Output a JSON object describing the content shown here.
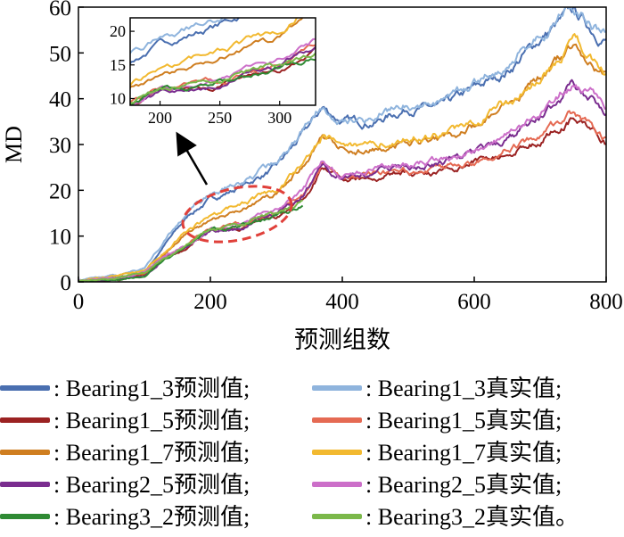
{
  "chart_data": {
    "type": "line",
    "xlabel": "预测组数",
    "ylabel": "MD",
    "xlim": [
      0,
      800
    ],
    "ylim": [
      0,
      60
    ],
    "xticks": [
      "0",
      "200",
      "400",
      "600",
      "800"
    ],
    "yticks": [
      "0",
      "10",
      "20",
      "30",
      "40",
      "50",
      "60"
    ],
    "grid": false,
    "legend_position": "bottom",
    "series": [
      {
        "name": "Bearing1_3预测值",
        "color": "#4a6fb0",
        "x": [
          0,
          60,
          100,
          130,
          170,
          200,
          250,
          300,
          340,
          370,
          400,
          450,
          500,
          550,
          600,
          650,
          700,
          750,
          780,
          800
        ],
        "y": [
          0,
          1,
          2,
          8,
          15,
          18,
          21,
          25,
          32,
          38,
          35,
          35,
          38,
          38,
          42,
          46,
          53,
          59,
          55,
          53
        ]
      },
      {
        "name": "Bearing1_3真实值",
        "color": "#8fb4dd",
        "x": [
          0,
          60,
          100,
          130,
          170,
          200,
          250,
          300,
          340,
          370,
          400,
          450,
          500,
          550,
          600,
          650,
          700,
          750,
          780,
          800
        ],
        "y": [
          0.5,
          1.5,
          3,
          9,
          16,
          19,
          22,
          26,
          33,
          39,
          36,
          36,
          39,
          39,
          43,
          47,
          54,
          60,
          56,
          54
        ]
      },
      {
        "name": "Bearing1_5预测值",
        "color": "#9b2222",
        "x": [
          0,
          60,
          100,
          130,
          170,
          200,
          250,
          300,
          340,
          370,
          400,
          450,
          500,
          550,
          600,
          650,
          700,
          750,
          780,
          800
        ],
        "y": [
          0,
          0.5,
          1.5,
          5,
          8,
          11,
          12,
          14,
          18,
          25,
          22,
          23,
          24,
          24,
          26,
          28,
          31,
          36,
          33,
          30
        ]
      },
      {
        "name": "Bearing1_5真实值",
        "color": "#e56a53",
        "x": [
          0,
          60,
          100,
          130,
          170,
          200,
          250,
          300,
          340,
          370,
          400,
          450,
          500,
          550,
          600,
          650,
          700,
          750,
          780,
          800
        ],
        "y": [
          0.3,
          0.8,
          2,
          5.5,
          8.5,
          11.5,
          12.5,
          14.5,
          18.5,
          25.5,
          22.5,
          23.5,
          24.5,
          24.5,
          26.5,
          29,
          32,
          37,
          34,
          31
        ]
      },
      {
        "name": "Bearing1_7预测值",
        "color": "#cf7e20",
        "x": [
          0,
          60,
          100,
          130,
          170,
          200,
          250,
          300,
          340,
          370,
          400,
          450,
          500,
          550,
          600,
          650,
          700,
          750,
          780,
          800
        ],
        "y": [
          0,
          0.8,
          2,
          6,
          11,
          13,
          16,
          19,
          25,
          31,
          29,
          29,
          31,
          31,
          34,
          38,
          44,
          51,
          48,
          45
        ]
      },
      {
        "name": "Bearing1_7真实值",
        "color": "#f2b930",
        "x": [
          0,
          60,
          100,
          130,
          170,
          200,
          250,
          300,
          340,
          370,
          400,
          450,
          500,
          550,
          600,
          650,
          700,
          750,
          780,
          800
        ],
        "y": [
          0.4,
          1.2,
          2.5,
          6.5,
          12,
          14,
          17,
          20,
          26,
          32,
          30,
          30,
          32,
          32,
          35,
          39,
          45,
          52,
          49,
          46
        ]
      },
      {
        "name": "Bearing2_5预测值",
        "color": "#7a2d8f",
        "x": [
          0,
          60,
          100,
          130,
          170,
          200,
          250,
          300,
          340,
          370,
          400,
          450,
          500,
          550,
          600,
          650,
          700,
          750,
          780,
          800
        ],
        "y": [
          0,
          0.5,
          1.5,
          5,
          8,
          11,
          12,
          15,
          19,
          26,
          23,
          24,
          25,
          26,
          28,
          31,
          36,
          43,
          40,
          37
        ]
      },
      {
        "name": "Bearing2_5真实值",
        "color": "#cc6fc9",
        "x": [
          0,
          60,
          100,
          130,
          170,
          200,
          250,
          300,
          340,
          370,
          400,
          450,
          500,
          550,
          600,
          650,
          700,
          750,
          780,
          800
        ],
        "y": [
          0.3,
          0.8,
          2,
          5.5,
          8.5,
          11.5,
          12.5,
          15.5,
          19.5,
          26.5,
          23.5,
          24.5,
          25.5,
          26.5,
          28.5,
          32,
          37,
          44,
          41,
          38
        ]
      },
      {
        "name": "Bearing3_2预测值",
        "color": "#2f8a34",
        "x": [
          0,
          60,
          100,
          130,
          170,
          200,
          250,
          300,
          340
        ],
        "y": [
          0,
          0.5,
          1.5,
          5,
          8,
          11,
          12.5,
          14.5,
          17
        ]
      },
      {
        "name": "Bearing3_2真实值",
        "color": "#7bb84a",
        "x": [
          0,
          60,
          100,
          130,
          170,
          200,
          250,
          300,
          340
        ],
        "y": [
          0.3,
          0.8,
          2,
          5.5,
          8.5,
          11.5,
          13,
          15,
          17.5
        ]
      }
    ],
    "inset": {
      "xlim": [
        175,
        330
      ],
      "ylim": [
        9,
        22
      ],
      "xticks": [
        "200",
        "250",
        "300"
      ],
      "yticks": [
        "10",
        "15",
        "20"
      ]
    }
  },
  "legend": [
    [
      {
        "label": ": Bearing1_3预测值;",
        "color": "#4a6fb0"
      },
      {
        "label": ": Bearing1_3真实值;",
        "color": "#8fb4dd"
      }
    ],
    [
      {
        "label": ": Bearing1_5预测值;",
        "color": "#9b2222"
      },
      {
        "label": ": Bearing1_5真实值;",
        "color": "#e56a53"
      }
    ],
    [
      {
        "label": ": Bearing1_7预测值;",
        "color": "#cf7e20"
      },
      {
        "label": ": Bearing1_7真实值;",
        "color": "#f2b930"
      }
    ],
    [
      {
        "label": ": Bearing2_5预测值;",
        "color": "#7a2d8f"
      },
      {
        "label": ": Bearing2_5真实值;",
        "color": "#cc6fc9"
      }
    ],
    [
      {
        "label": ": Bearing3_2预测值;",
        "color": "#2f8a34"
      },
      {
        "label": ": Bearing3_2真实值。",
        "color": "#7bb84a"
      }
    ]
  ]
}
